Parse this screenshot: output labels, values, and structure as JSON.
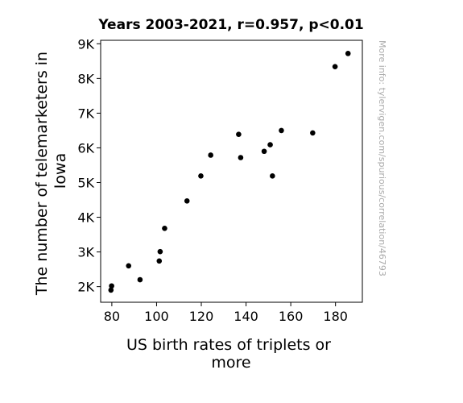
{
  "chart_data": {
    "type": "scatter",
    "title": "Years 2003-2021, r=0.957, p<0.01",
    "xlabel_lines": [
      "US birth rates of triplets or",
      "more"
    ],
    "ylabel_lines": [
      "The number of telemarketers in",
      "Iowa"
    ],
    "xlim": [
      75,
      192
    ],
    "ylim": [
      1550,
      9100
    ],
    "x_ticks": [
      80,
      100,
      120,
      140,
      160,
      180
    ],
    "x_tick_labels": [
      "80",
      "100",
      "120",
      "140",
      "160",
      "180"
    ],
    "y_ticks": [
      2000,
      3000,
      4000,
      5000,
      6000,
      7000,
      8000,
      9000
    ],
    "y_tick_labels": [
      "2K",
      "3K",
      "4K",
      "5K",
      "6K",
      "7K",
      "8K",
      "9K"
    ],
    "grid": false,
    "points": [
      {
        "x": 79.6,
        "y": 1900
      },
      {
        "x": 79.9,
        "y": 2020
      },
      {
        "x": 87.5,
        "y": 2600
      },
      {
        "x": 92.6,
        "y": 2200
      },
      {
        "x": 101.2,
        "y": 2740
      },
      {
        "x": 101.6,
        "y": 3010
      },
      {
        "x": 103.6,
        "y": 3680
      },
      {
        "x": 113.6,
        "y": 4470
      },
      {
        "x": 119.8,
        "y": 5190
      },
      {
        "x": 124.2,
        "y": 5790
      },
      {
        "x": 136.7,
        "y": 6390
      },
      {
        "x": 137.6,
        "y": 5720
      },
      {
        "x": 148.1,
        "y": 5900
      },
      {
        "x": 150.8,
        "y": 6090
      },
      {
        "x": 151.8,
        "y": 5190
      },
      {
        "x": 155.8,
        "y": 6500
      },
      {
        "x": 169.8,
        "y": 6430
      },
      {
        "x": 179.8,
        "y": 8340
      },
      {
        "x": 185.6,
        "y": 8720
      }
    ],
    "point_color": "#000000"
  },
  "watermark": "More info: tylervigen.com/spurious/correlation/46793"
}
